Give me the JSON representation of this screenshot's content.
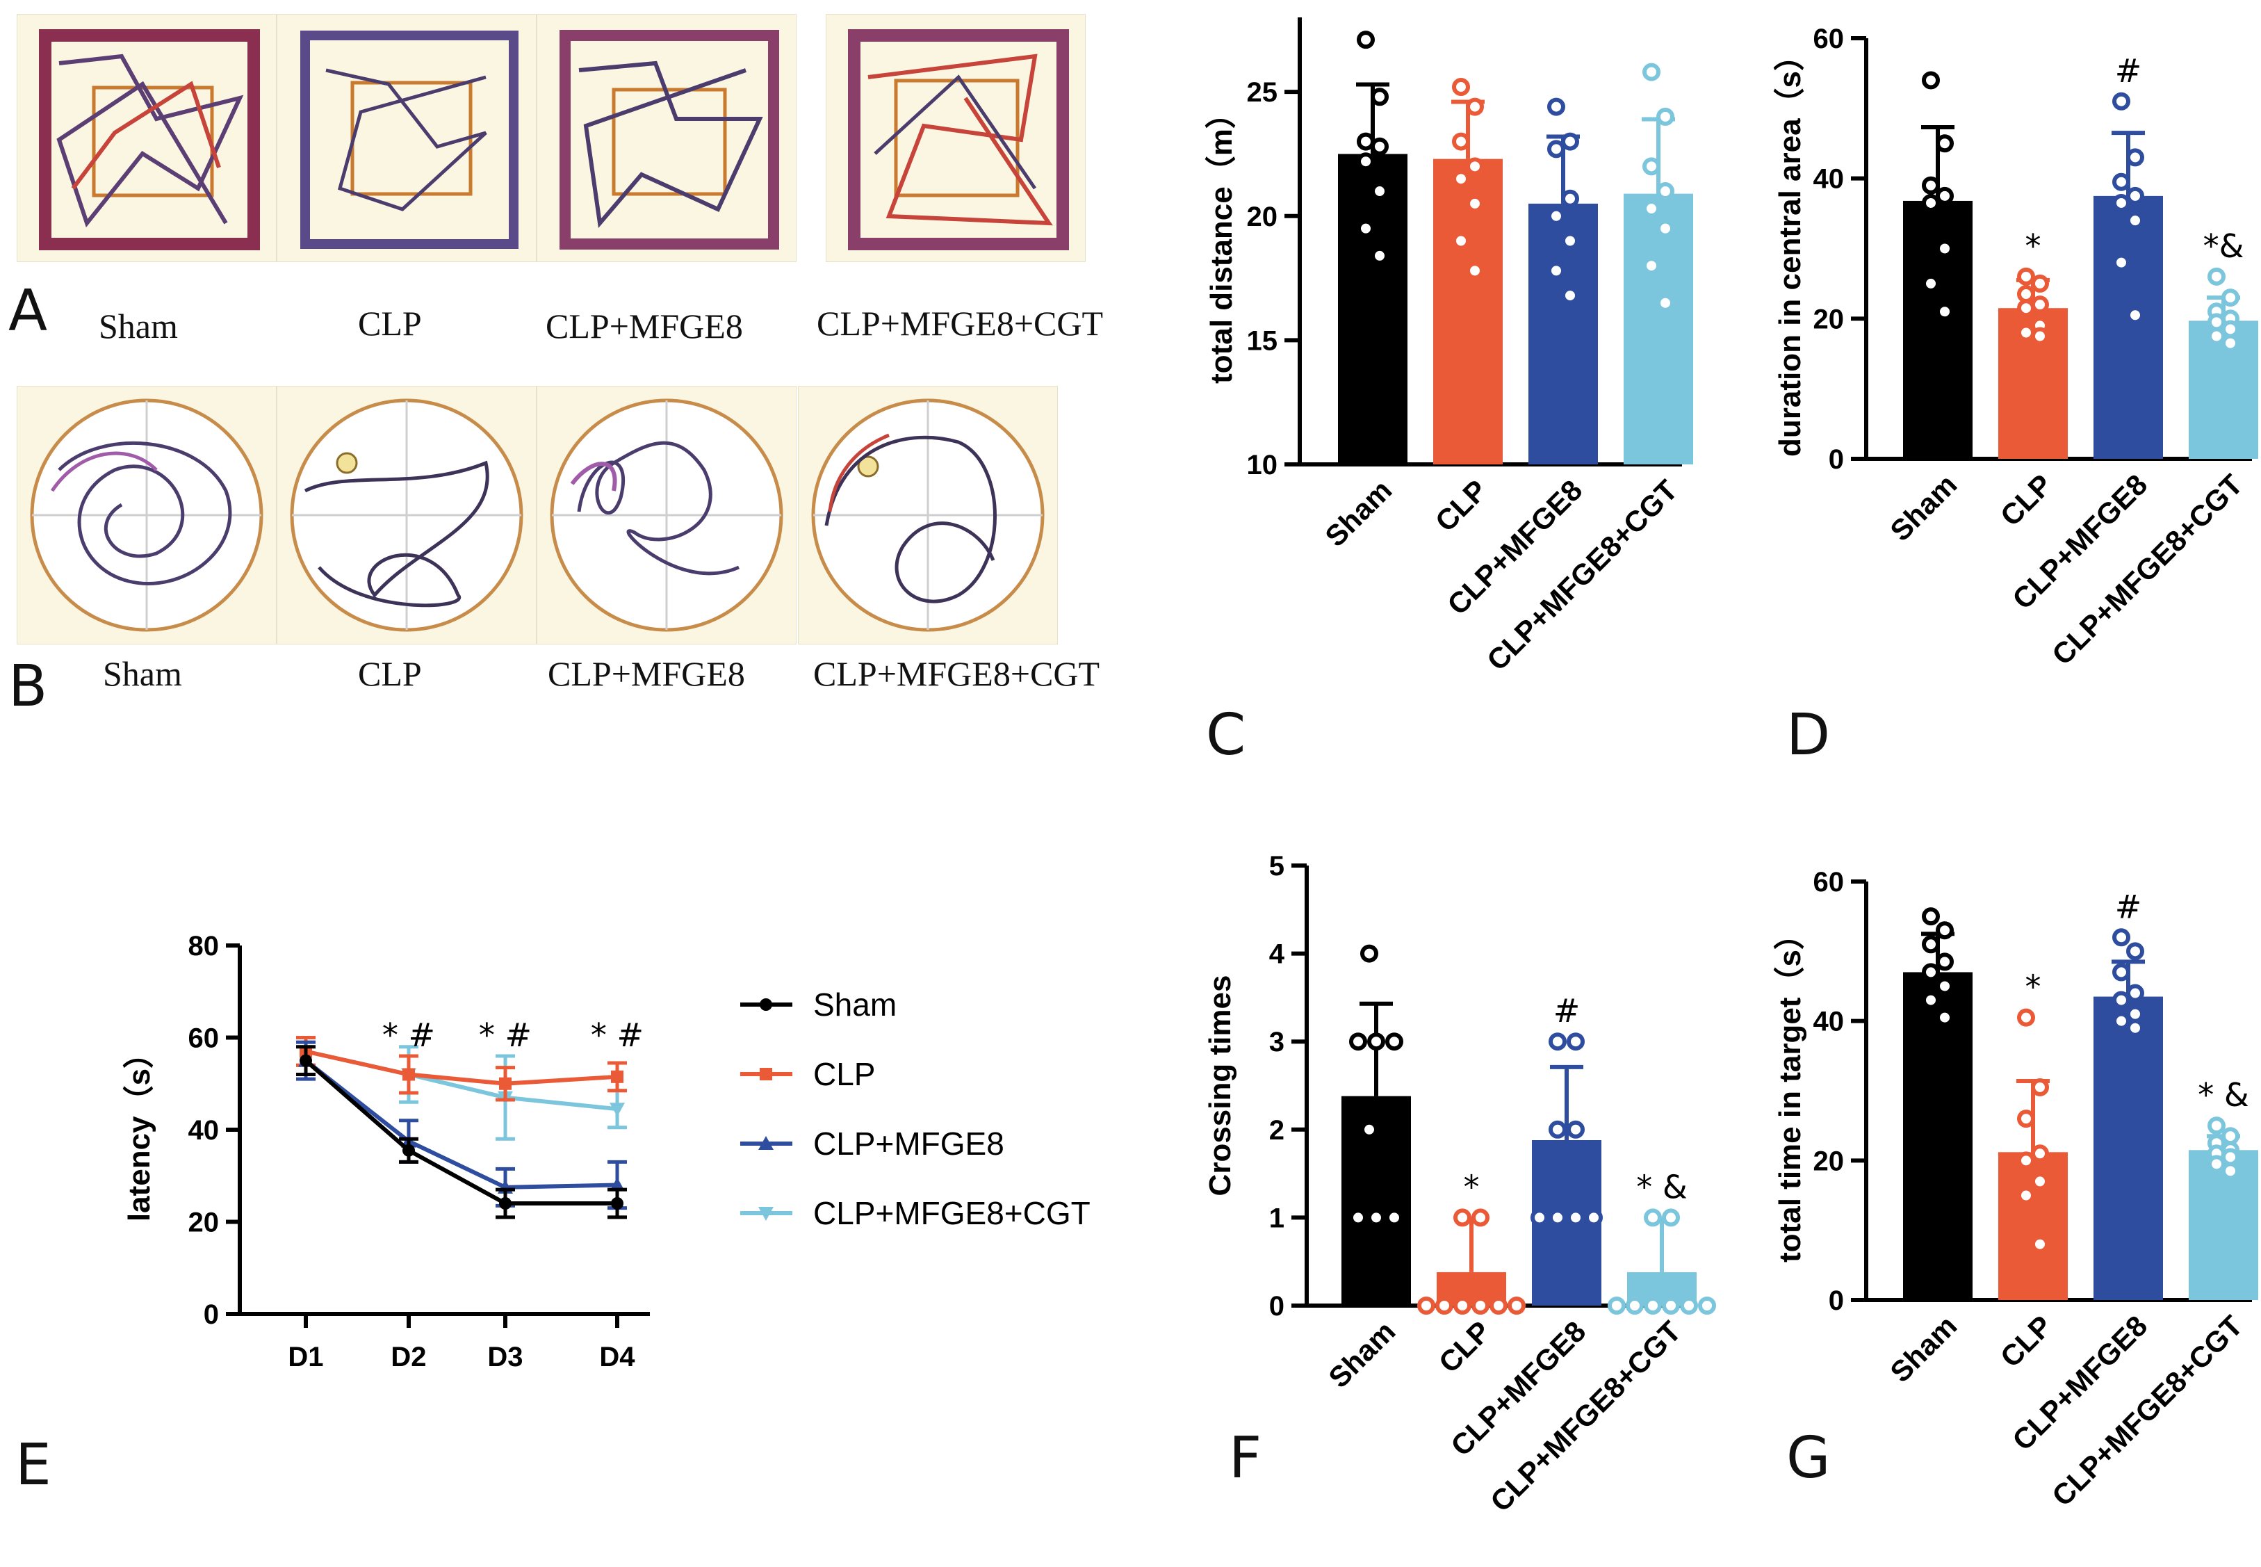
{
  "panel_letters": {
    "A": "A",
    "B": "B",
    "C": "C",
    "D": "D",
    "E": "E",
    "F": "F",
    "G": "G"
  },
  "groups": [
    "Sham",
    "CLP",
    "CLP+MFGE8",
    "CLP+MFGE8+CGT"
  ],
  "colors": {
    "Sham": "#000000",
    "CLP": "#ea5a37",
    "CLP+MFGE8": "#2f4d9f",
    "CLP+MFGE8+CGT": "#7cc6dd"
  },
  "open_field_captions": [
    "Sham",
    "CLP",
    "CLP+MFGE8",
    "CLP+MFGE8+CGT"
  ],
  "water_maze_captions": [
    "Sham",
    "CLP",
    "CLP+MFGE8",
    "CLP+MFGE8+CGT"
  ],
  "chart_data": [
    {
      "id": "C",
      "type": "bar",
      "ylabel": "total distance（m）",
      "categories": [
        "Sham",
        "CLP",
        "CLP+MFGE8",
        "CLP+MFGE8+CGT"
      ],
      "values": [
        22.5,
        22.3,
        20.5,
        20.9
      ],
      "errors": [
        2.8,
        2.3,
        2.7,
        3.0
      ],
      "points": [
        [
          27.1,
          24.8,
          23.0,
          22.8,
          22.2,
          21.0,
          19.5,
          18.4
        ],
        [
          25.2,
          24.4,
          23.0,
          22.0,
          21.5,
          20.5,
          19.0,
          17.8
        ],
        [
          24.4,
          23.0,
          22.7,
          20.7,
          20.0,
          19.0,
          17.8,
          16.8
        ],
        [
          25.8,
          24.0,
          22.0,
          21.0,
          20.3,
          19.5,
          18.0,
          16.5
        ]
      ],
      "yticks": [
        10,
        15,
        20,
        25
      ],
      "ylim": [
        10,
        28
      ],
      "annotations": [
        "",
        "",
        "",
        ""
      ]
    },
    {
      "id": "D",
      "type": "bar",
      "ylabel": "duration in central area（s）",
      "categories": [
        "Sham",
        "CLP",
        "CLP+MFGE8",
        "CLP+MFGE8+CGT"
      ],
      "values": [
        36.8,
        21.5,
        37.5,
        19.7
      ],
      "errors": [
        10.5,
        4.0,
        9.0,
        3.3
      ],
      "points": [
        [
          54.0,
          45.0,
          39.0,
          37.5,
          36.5,
          30.0,
          25.0,
          21.0
        ],
        [
          26.0,
          25.0,
          23.5,
          22.0,
          21.5,
          19.0,
          18.0,
          17.5
        ],
        [
          51.0,
          43.0,
          39.5,
          37.5,
          36.5,
          34.0,
          28.0,
          20.5
        ],
        [
          26.0,
          23.0,
          21.0,
          20.0,
          19.5,
          18.5,
          17.5,
          16.5
        ]
      ],
      "yticks": [
        0,
        20,
        40,
        60
      ],
      "ylim": [
        0,
        60
      ],
      "annotations": [
        "",
        "*",
        "#",
        "*&"
      ]
    },
    {
      "id": "E",
      "type": "line",
      "ylabel": "latency（s）",
      "x": [
        "D1",
        "D2",
        "D3",
        "D4"
      ],
      "series": [
        {
          "name": "Sham",
          "values": [
            55,
            35.5,
            24,
            24
          ],
          "errors": [
            3,
            2.5,
            3,
            3
          ]
        },
        {
          "name": "CLP",
          "values": [
            57,
            52,
            50,
            51.5
          ],
          "errors": [
            3,
            4,
            3.5,
            3
          ]
        },
        {
          "name": "CLP+MFGE8",
          "values": [
            55,
            37.5,
            27.5,
            28
          ],
          "errors": [
            4,
            4.5,
            4,
            5
          ]
        },
        {
          "name": "CLP+MFGE8+CGT",
          "values": [
            57,
            52,
            47,
            44.5
          ],
          "errors": [
            3,
            6,
            9,
            4
          ]
        }
      ],
      "yticks": [
        0,
        20,
        40,
        60,
        80
      ],
      "ylim": [
        0,
        80
      ],
      "annotations": [
        "",
        "* #",
        "* #",
        "* #"
      ]
    },
    {
      "id": "F",
      "type": "bar",
      "ylabel": "Crossing times",
      "categories": [
        "Sham",
        "CLP",
        "CLP+MFGE8",
        "CLP+MFGE8+CGT"
      ],
      "values": [
        2.38,
        0.38,
        1.88,
        0.38
      ],
      "errors": [
        1.05,
        0.6,
        0.83,
        0.6
      ],
      "points": [
        [
          4,
          3,
          3,
          3,
          2,
          1,
          1,
          1
        ],
        [
          1,
          1,
          0,
          0,
          0,
          0,
          0,
          0
        ],
        [
          3,
          3,
          2,
          2,
          1,
          1,
          1,
          1
        ],
        [
          1,
          1,
          0,
          0,
          0,
          0,
          0,
          0
        ]
      ],
      "yticks": [
        0,
        1,
        2,
        3,
        4,
        5
      ],
      "ylim": [
        0,
        5
      ],
      "annotations": [
        "",
        "*",
        "#",
        "* &"
      ]
    },
    {
      "id": "G",
      "type": "bar",
      "ylabel": "total time in target（s）",
      "categories": [
        "Sham",
        "CLP",
        "CLP+MFGE8",
        "CLP+MFGE8+CGT"
      ],
      "values": [
        47.0,
        21.2,
        43.5,
        21.5
      ],
      "errors": [
        5.5,
        10.2,
        5.0,
        2.0
      ],
      "points": [
        [
          55.0,
          53.0,
          51.0,
          48.5,
          47.0,
          45.0,
          43.0,
          40.5
        ],
        [
          40.5,
          30.5,
          26.0,
          21.0,
          20.0,
          17.0,
          15.0,
          8.0
        ],
        [
          52.0,
          50.0,
          47.0,
          44.0,
          43.0,
          41.0,
          40.0,
          39.0
        ],
        [
          25.0,
          23.5,
          22.5,
          21.5,
          21.0,
          20.5,
          19.5,
          18.5
        ]
      ],
      "yticks": [
        0,
        20,
        40,
        60
      ],
      "ylim": [
        0,
        60
      ],
      "annotations": [
        "",
        "*",
        "#",
        "* &"
      ]
    }
  ]
}
